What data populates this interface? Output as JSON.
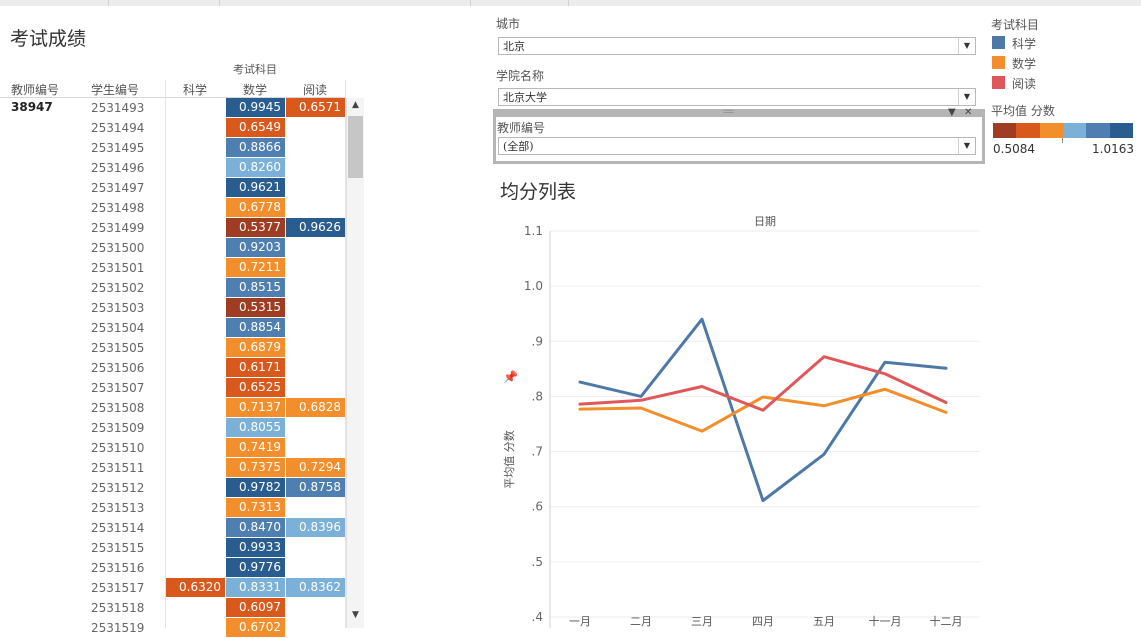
{
  "sheet": {
    "title": "考试成绩",
    "column_group": "考试科目",
    "headers": {
      "teacher": "教师编号",
      "student": "学生编号",
      "science": "科学",
      "math": "数学",
      "reading": "阅读"
    },
    "teacher_id": "38947",
    "rows": [
      {
        "student": "2531493",
        "science": null,
        "math": "0.9945",
        "reading": "0.6571"
      },
      {
        "student": "2531494",
        "science": null,
        "math": "0.6549",
        "reading": null
      },
      {
        "student": "2531495",
        "science": null,
        "math": "0.8866",
        "reading": null
      },
      {
        "student": "2531496",
        "science": null,
        "math": "0.8260",
        "reading": null
      },
      {
        "student": "2531497",
        "science": null,
        "math": "0.9621",
        "reading": null
      },
      {
        "student": "2531498",
        "science": null,
        "math": "0.6778",
        "reading": null
      },
      {
        "student": "2531499",
        "science": null,
        "math": "0.5377",
        "reading": "0.9626"
      },
      {
        "student": "2531500",
        "science": null,
        "math": "0.9203",
        "reading": null
      },
      {
        "student": "2531501",
        "science": null,
        "math": "0.7211",
        "reading": null
      },
      {
        "student": "2531502",
        "science": null,
        "math": "0.8515",
        "reading": null
      },
      {
        "student": "2531503",
        "science": null,
        "math": "0.5315",
        "reading": null
      },
      {
        "student": "2531504",
        "science": null,
        "math": "0.8854",
        "reading": null
      },
      {
        "student": "2531505",
        "science": null,
        "math": "0.6879",
        "reading": null
      },
      {
        "student": "2531506",
        "science": null,
        "math": "0.6171",
        "reading": null
      },
      {
        "student": "2531507",
        "science": null,
        "math": "0.6525",
        "reading": null
      },
      {
        "student": "2531508",
        "science": null,
        "math": "0.7137",
        "reading": "0.6828"
      },
      {
        "student": "2531509",
        "science": null,
        "math": "0.8055",
        "reading": null
      },
      {
        "student": "2531510",
        "science": null,
        "math": "0.7419",
        "reading": null
      },
      {
        "student": "2531511",
        "science": null,
        "math": "0.7375",
        "reading": "0.7294"
      },
      {
        "student": "2531512",
        "science": null,
        "math": "0.9782",
        "reading": "0.8758"
      },
      {
        "student": "2531513",
        "science": null,
        "math": "0.7313",
        "reading": null
      },
      {
        "student": "2531514",
        "science": null,
        "math": "0.8470",
        "reading": "0.8396"
      },
      {
        "student": "2531515",
        "science": null,
        "math": "0.9933",
        "reading": null
      },
      {
        "student": "2531516",
        "science": null,
        "math": "0.9776",
        "reading": null
      },
      {
        "student": "2531517",
        "science": "0.6320",
        "math": "0.8331",
        "reading": "0.8362"
      },
      {
        "student": "2531518",
        "science": null,
        "math": "0.6097",
        "reading": null
      },
      {
        "student": "2531519",
        "science": null,
        "math": "0.6702",
        "reading": null
      }
    ]
  },
  "filters": {
    "city": {
      "label": "城市",
      "value": "北京"
    },
    "college": {
      "label": "学院名称",
      "value": "北京大学"
    },
    "teacher": {
      "label": "教师编号",
      "value": "(全部)"
    }
  },
  "legend": {
    "title": "考试科目",
    "items": [
      {
        "label": "科学",
        "color": "#4e79a7"
      },
      {
        "label": "数学",
        "color": "#f28e2b"
      },
      {
        "label": "阅读",
        "color": "#e15759"
      }
    ]
  },
  "ramp": {
    "title": "平均值 分数",
    "min": "0.5084",
    "max": "1.0163",
    "colors": [
      "#9e3d22",
      "#d9591d",
      "#f28e2b",
      "#7bb0d8",
      "#4e7fb0",
      "#2a5d8f"
    ]
  },
  "chart_data": {
    "type": "line",
    "title": "均分列表",
    "xlabel": "日期",
    "ylabel": "平均值 分数",
    "categories": [
      "一月",
      "二月",
      "三月",
      "四月",
      "五月",
      "十一月",
      "十二月"
    ],
    "ylim": [
      0.38,
      1.1
    ],
    "yticks": [
      {
        "value": 1.1,
        "label": "1.1"
      },
      {
        "value": 1.0,
        "label": "1.0"
      },
      {
        "value": 0.9,
        "label": ".9"
      },
      {
        "value": 0.8,
        "label": ".8"
      },
      {
        "value": 0.7,
        "label": ".7"
      },
      {
        "value": 0.6,
        "label": ".6"
      },
      {
        "value": 0.5,
        "label": ".5"
      },
      {
        "value": 0.4,
        "label": ".4"
      }
    ],
    "series": [
      {
        "name": "科学",
        "color": "#4e79a7",
        "values": [
          0.826,
          0.8,
          0.94,
          0.611,
          0.695,
          0.862,
          0.851
        ]
      },
      {
        "name": "数学",
        "color": "#f28e2b",
        "values": [
          0.777,
          0.779,
          0.737,
          0.799,
          0.783,
          0.813,
          0.771
        ]
      },
      {
        "name": "阅读",
        "color": "#e15759",
        "values": [
          0.786,
          0.793,
          0.818,
          0.775,
          0.872,
          0.841,
          0.789
        ]
      }
    ],
    "grid": true
  }
}
